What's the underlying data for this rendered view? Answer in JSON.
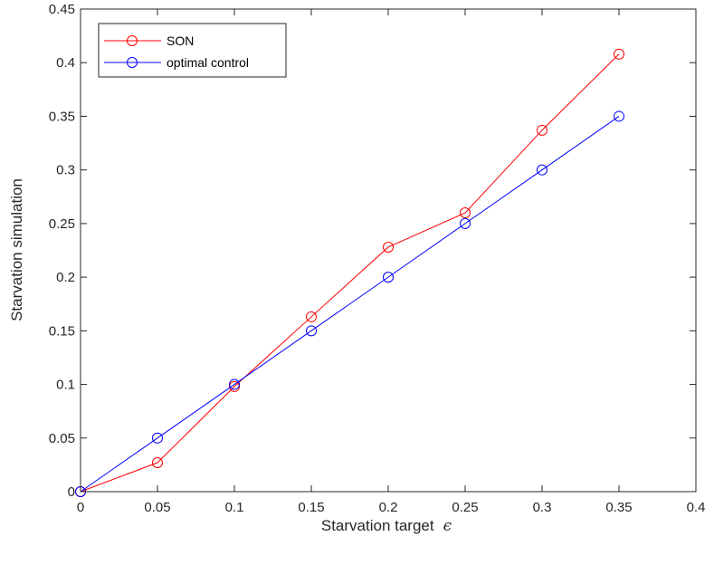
{
  "chart_data": {
    "type": "line",
    "title": "",
    "xlabel": "Starvation target",
    "xlabel_symbol": "ϵ",
    "ylabel": "Starvation simulation",
    "xlim": [
      0,
      0.4
    ],
    "ylim": [
      0,
      0.45
    ],
    "xticks": [
      "0",
      "0.05",
      "0.1",
      "0.15",
      "0.2",
      "0.25",
      "0.3",
      "0.35",
      "0.4"
    ],
    "yticks": [
      "0",
      "0.05",
      "0.1",
      "0.15",
      "0.2",
      "0.25",
      "0.3",
      "0.35",
      "0.4",
      "0.45"
    ],
    "x": [
      0,
      0.05,
      0.1,
      0.15,
      0.2,
      0.25,
      0.3,
      0.35
    ],
    "grid": false,
    "legend_position": "top-left",
    "series": [
      {
        "name": "SON",
        "color": "#ff0000",
        "marker": "circle",
        "values": [
          0.0,
          0.027,
          0.098,
          0.163,
          0.228,
          0.26,
          0.337,
          0.408
        ]
      },
      {
        "name": "optimal control",
        "color": "#0000ff",
        "marker": "circle",
        "values": [
          0.0,
          0.05,
          0.1,
          0.15,
          0.2,
          0.25,
          0.3,
          0.35
        ]
      }
    ]
  }
}
